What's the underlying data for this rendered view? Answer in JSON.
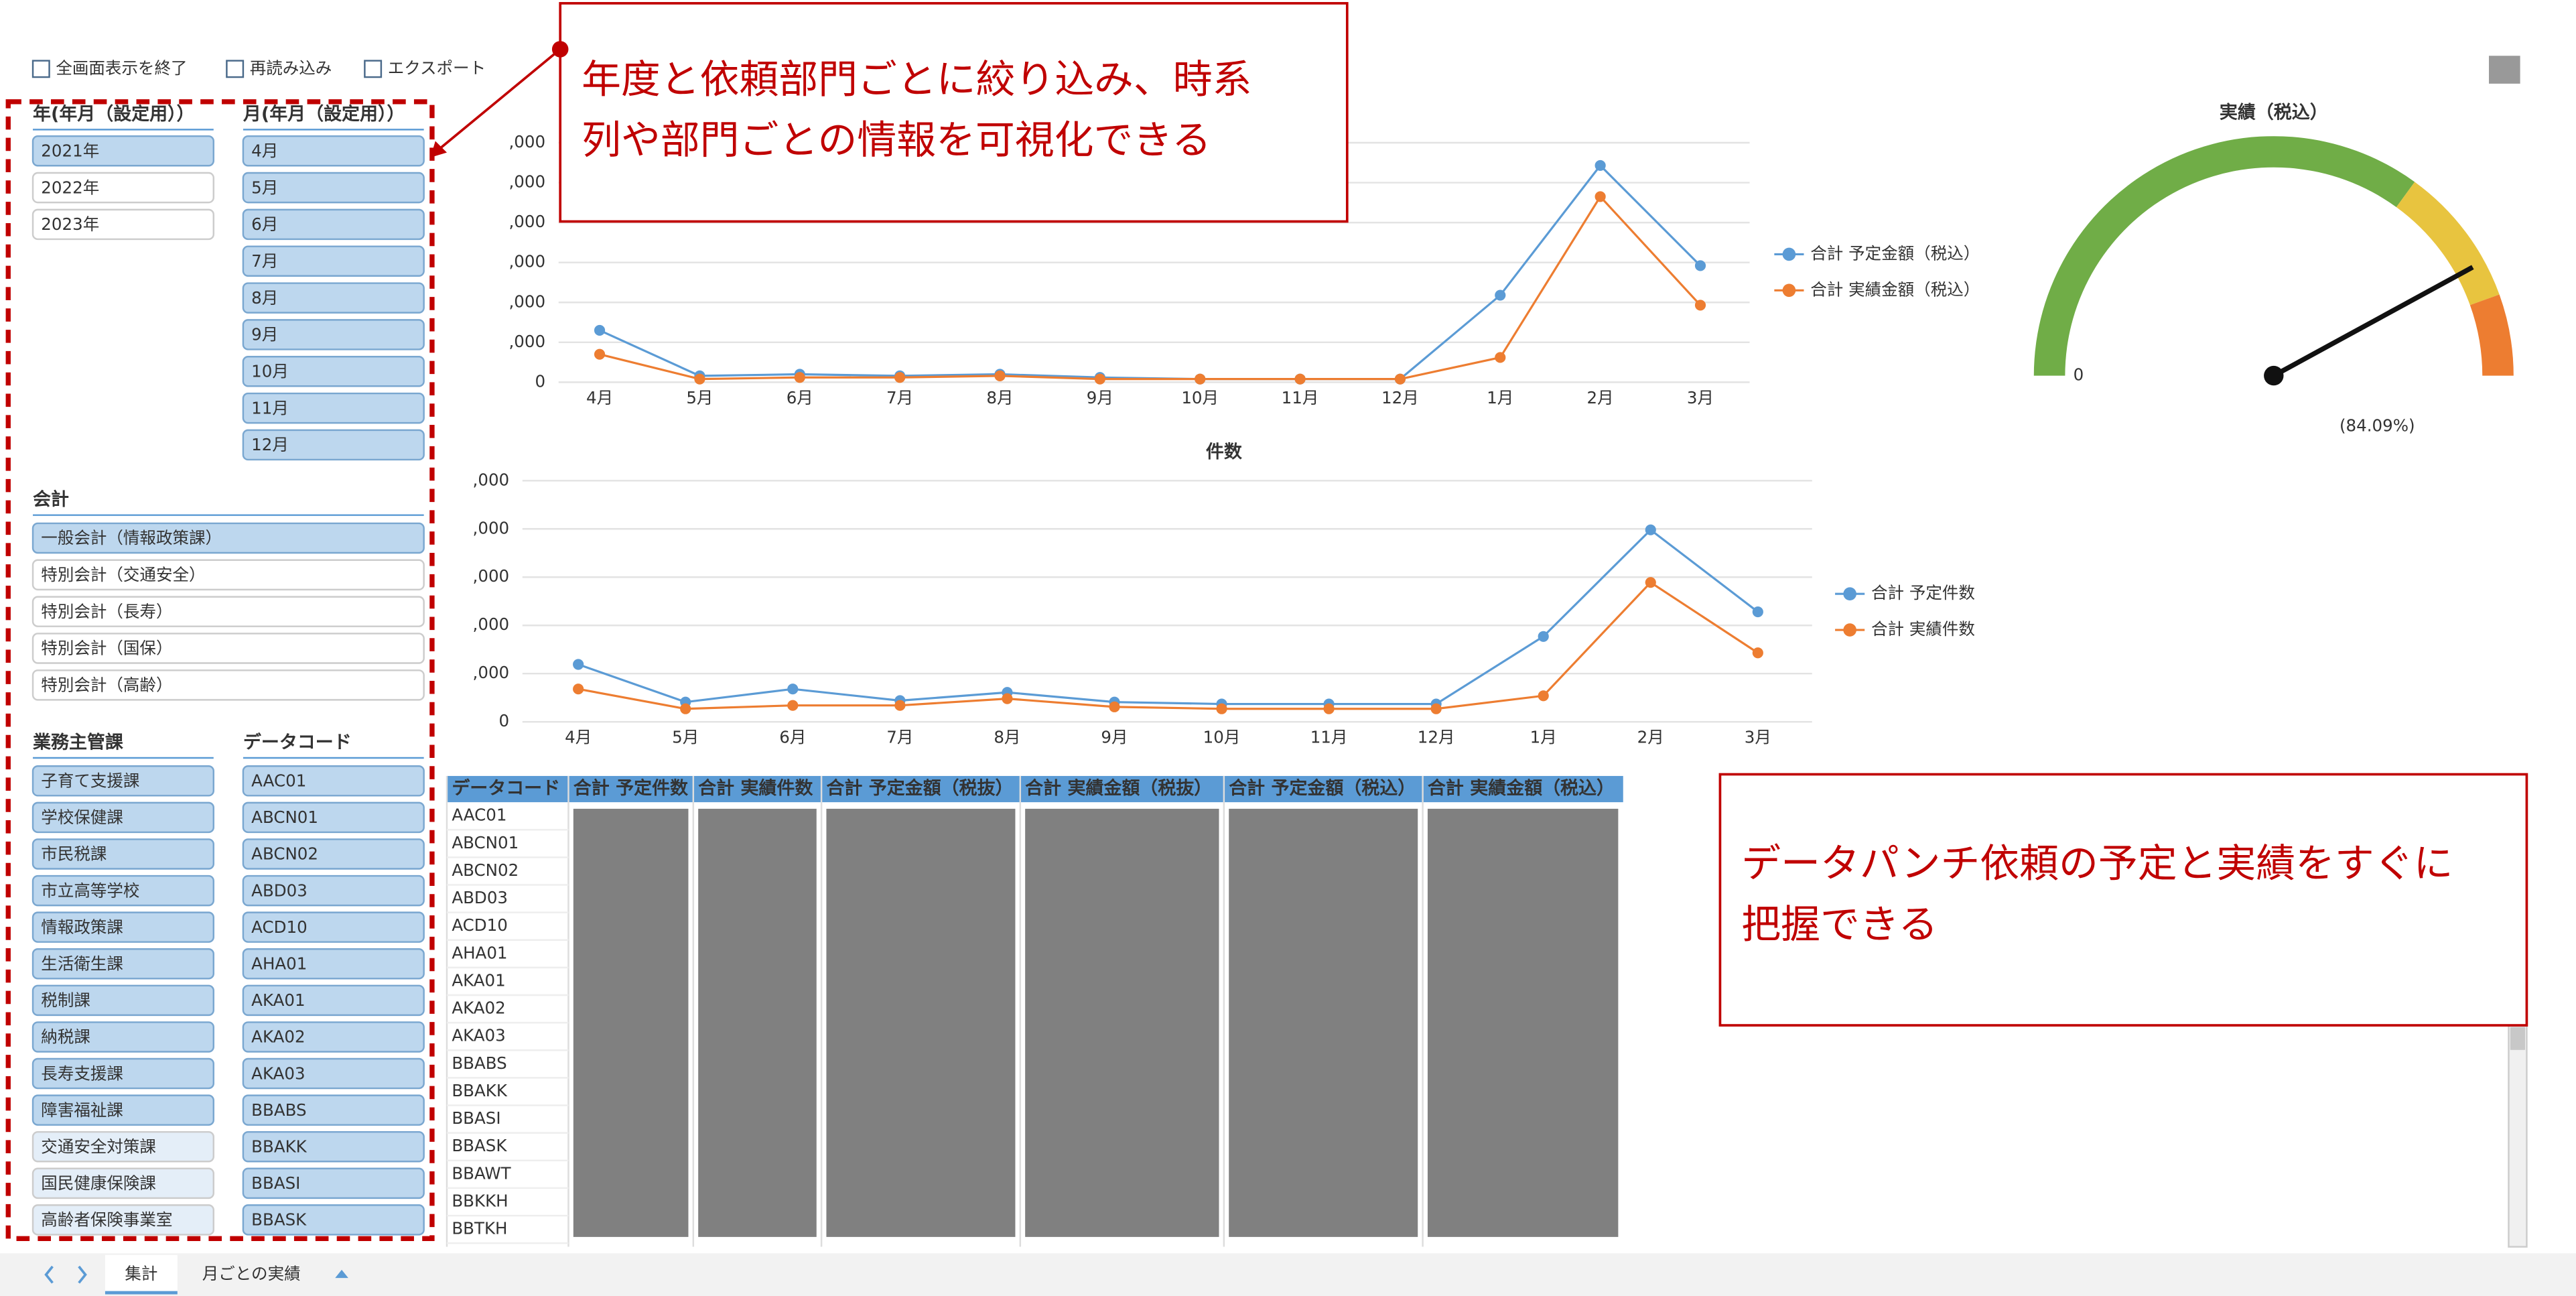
{
  "toolbar": [
    "全画面表示を終了",
    "再読み込み",
    "エクスポート"
  ],
  "filters": {
    "year": {
      "header": "年(年月（設定用））",
      "items": [
        {
          "label": "2021年",
          "selected": true
        },
        {
          "label": "2022年",
          "selected": false
        },
        {
          "label": "2023年",
          "selected": false
        }
      ]
    },
    "month": {
      "header": "月(年月（設定用））",
      "items": [
        {
          "label": "4月",
          "selected": true
        },
        {
          "label": "5月",
          "selected": true
        },
        {
          "label": "6月",
          "selected": true
        },
        {
          "label": "7月",
          "selected": true
        },
        {
          "label": "8月",
          "selected": true
        },
        {
          "label": "9月",
          "selected": true
        },
        {
          "label": "10月",
          "selected": true
        },
        {
          "label": "11月",
          "selected": true
        },
        {
          "label": "12月",
          "selected": true
        }
      ]
    },
    "account": {
      "header": "会計",
      "items": [
        {
          "label": "一般会計（情報政策課）",
          "selected": true
        },
        {
          "label": "特別会計（交通安全）",
          "selected": false
        },
        {
          "label": "特別会計（長寿）",
          "selected": false
        },
        {
          "label": "特別会計（国保）",
          "selected": false
        },
        {
          "label": "特別会計（高齢）",
          "selected": false
        }
      ]
    },
    "department": {
      "header": "業務主管課",
      "items": [
        {
          "label": "子育て支援課",
          "selected": true
        },
        {
          "label": "学校保健課",
          "selected": true
        },
        {
          "label": "市民税課",
          "selected": true
        },
        {
          "label": "市立高等学校",
          "selected": true
        },
        {
          "label": "情報政策課",
          "selected": true
        },
        {
          "label": "生活衛生課",
          "selected": true
        },
        {
          "label": "税制課",
          "selected": true
        },
        {
          "label": "納税課",
          "selected": true
        },
        {
          "label": "長寿支援課",
          "selected": true
        },
        {
          "label": "障害福祉課",
          "selected": true
        },
        {
          "label": "交通安全対策課",
          "selected": false
        },
        {
          "label": "国民健康保険課",
          "selected": false
        },
        {
          "label": "高齢者保険事業室",
          "selected": false
        }
      ]
    },
    "datacode": {
      "header": "データコード",
      "items": [
        {
          "label": "AAC01",
          "selected": true
        },
        {
          "label": "ABCN01",
          "selected": true
        },
        {
          "label": "ABCN02",
          "selected": true
        },
        {
          "label": "ABD03",
          "selected": true
        },
        {
          "label": "ACD10",
          "selected": true
        },
        {
          "label": "AHA01",
          "selected": true
        },
        {
          "label": "AKA01",
          "selected": true
        },
        {
          "label": "AKA02",
          "selected": true
        },
        {
          "label": "AKA03",
          "selected": true
        },
        {
          "label": "BBABS",
          "selected": true
        },
        {
          "label": "BBAKK",
          "selected": true
        },
        {
          "label": "BBASI",
          "selected": true
        },
        {
          "label": "BBASK",
          "selected": true
        }
      ]
    }
  },
  "chart_data": [
    {
      "type": "line",
      "categories": [
        "4月",
        "5月",
        "6月",
        "7月",
        "8月",
        "9月",
        "10月",
        "11月",
        "12月",
        "1月",
        "2月",
        "3月"
      ],
      "ylim": [
        0,
        6000
      ],
      "yticks": [
        0,
        {
          "value": 1000,
          "label": ",000"
        },
        {
          "value": 2000,
          "label": ",000"
        },
        {
          "value": 3000,
          "label": ",000"
        },
        {
          "value": 4000,
          "label": ",000"
        },
        {
          "value": 5000,
          "label": ",000"
        },
        {
          "value": 6000,
          "label": ",000"
        }
      ],
      "grid": true,
      "series": [
        {
          "name": "合計 予定金額（税込）",
          "color": "#5b9bd5",
          "values": [
            1300,
            160,
            200,
            160,
            200,
            120,
            80,
            80,
            80,
            2180,
            5430,
            2920
          ]
        },
        {
          "name": "合計 実績金額（税込）",
          "color": "#ed7d31",
          "values": [
            700,
            80,
            120,
            120,
            160,
            80,
            80,
            80,
            80,
            620,
            4650,
            1930
          ]
        }
      ]
    },
    {
      "type": "line",
      "title": "件数",
      "categories": [
        "4月",
        "5月",
        "6月",
        "7月",
        "8月",
        "9月",
        "10月",
        "11月",
        "12月",
        "1月",
        "2月",
        "3月"
      ],
      "ylim": [
        0,
        5000
      ],
      "yticks": [
        0,
        {
          "value": 1000,
          "label": ",000"
        },
        {
          "value": 2000,
          "label": ",000"
        },
        {
          "value": 3000,
          "label": ",000"
        },
        {
          "value": 4000,
          "label": ",000"
        },
        {
          "value": 5000,
          "label": ",000"
        }
      ],
      "grid": true,
      "series": [
        {
          "name": "合計 予定件数",
          "color": "#5b9bd5",
          "values": [
            1190,
            410,
            680,
            440,
            610,
            410,
            370,
            370,
            370,
            1770,
            3980,
            2280
          ]
        },
        {
          "name": "合計 実績件数",
          "color": "#ed7d31",
          "values": [
            680,
            270,
            340,
            340,
            480,
            310,
            270,
            270,
            270,
            540,
            2890,
            1430
          ]
        }
      ]
    },
    {
      "type": "gauge",
      "title": "実績（税込）",
      "min": 0,
      "value": 84.09,
      "value_label": "(84.09%)"
    }
  ],
  "table": {
    "columns": [
      "データコード",
      "合計 予定件数",
      "合計 実績件数",
      "合計 予定金額（税抜）",
      "合計 実績金額（税抜）",
      "合計 予定金額（税込）",
      "合計 実績金額（税込）"
    ],
    "rows": [
      "AAC01",
      "ABCN01",
      "ABCN02",
      "ABD03",
      "ACD10",
      "AHA01",
      "AKA01",
      "AKA02",
      "AKA03",
      "BBABS",
      "BBAKK",
      "BBASI",
      "BBASK",
      "BBAWT",
      "BBKKH",
      "BBTKH"
    ]
  },
  "annotations": [
    [
      "年度と依頼部門ごとに絞り込み、時系",
      "列や部門ごとの情報を可視化できる"
    ],
    [
      "データパンチ依頼の予定と実績をすぐに",
      "把握できる"
    ]
  ],
  "tabs": [
    {
      "label": "集計",
      "selected": true
    },
    {
      "label": "月ごとの実績",
      "selected": false
    }
  ]
}
